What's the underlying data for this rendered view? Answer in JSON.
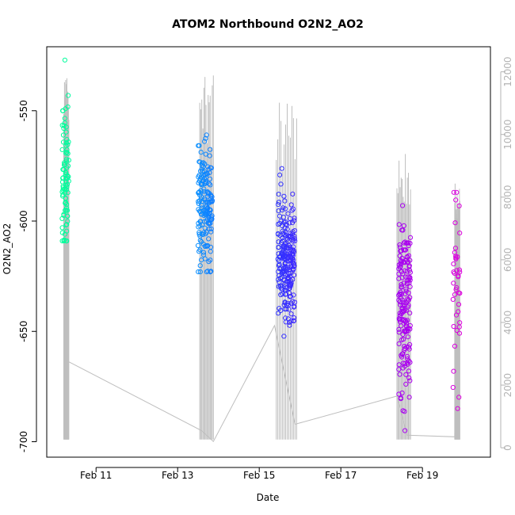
{
  "chart_data": {
    "type": "scatter",
    "title": "ATOM2 Northbound O2N2_AO2",
    "xlabel": "Date",
    "ylabel": "O2N2_AO2",
    "xlim": [
      "2013-02-09 19:00",
      "2013-02-20 16:00"
    ],
    "ylim": [
      -707,
      -521
    ],
    "x_ticks": [
      {
        "date": "2013-02-11",
        "label": "Feb 11"
      },
      {
        "date": "2013-02-13",
        "label": "Feb 13"
      },
      {
        "date": "2013-02-15",
        "label": "Feb 15"
      },
      {
        "date": "2013-02-17",
        "label": "Feb 17"
      },
      {
        "date": "2013-02-19",
        "label": "Feb 19"
      }
    ],
    "y_ticks": [
      -700,
      -650,
      -600,
      -550
    ],
    "y_ticks_labels": [
      "-700",
      "-650",
      "-600",
      "-550"
    ],
    "y2_lim": [
      -300,
      12800
    ],
    "y2_ticks": [
      0,
      2000,
      4000,
      6000,
      8000,
      10000,
      12000
    ],
    "y2_ticks_labels": [
      "0",
      "2000",
      "4000",
      "6000",
      "8000",
      "10000",
      "12000"
    ],
    "grid": false,
    "legend": "none",
    "point_color_gradient": [
      "#00FF99",
      "#00BFFF",
      "#1F3FFF",
      "#7F00FF",
      "#DD00DD"
    ],
    "line_color": "#bebebe",
    "clusters": [
      {
        "start": "2013-02-10 04:00",
        "end": "2013-02-10 08:00",
        "n": 90,
        "y_mean": -582,
        "y_spread": 22,
        "y_min": -609,
        "y_max": -523
      },
      {
        "start": "2013-02-13 12:00",
        "end": "2013-02-13 20:30",
        "n": 170,
        "y_mean": -594,
        "y_spread": 14,
        "y_min": -623,
        "y_max": -553
      },
      {
        "start": "2013-02-15 11:00",
        "end": "2013-02-15 21:00",
        "n": 230,
        "y_mean": -618,
        "y_spread": 13,
        "y_min": -662,
        "y_max": -575
      },
      {
        "start": "2013-02-18 10:00",
        "end": "2013-02-18 17:00",
        "n": 170,
        "y_mean": -638,
        "y_spread": 19,
        "y_min": -701,
        "y_max": -593
      },
      {
        "start": "2013-02-19 18:00",
        "end": "2013-02-19 22:00",
        "n": 40,
        "y_mean": -625,
        "y_spread": 30,
        "y_min": -685,
        "y_max": -587
      }
    ],
    "altitude_line": [
      {
        "date": "2013-02-10 06:00",
        "value": 2800
      },
      {
        "date": "2013-02-13 14:00",
        "value": 550
      },
      {
        "date": "2013-02-13 21:00",
        "value": 200
      },
      {
        "date": "2013-02-15 09:00",
        "value": 3900
      },
      {
        "date": "2013-02-15 21:00",
        "value": 750
      },
      {
        "date": "2013-02-18 09:00",
        "value": 1650
      },
      {
        "date": "2013-02-18 15:00",
        "value": 400
      },
      {
        "date": "2013-02-19 19:00",
        "value": 350
      },
      {
        "date": "2013-02-19 21:00",
        "value": 6800
      }
    ],
    "altitude_spikes": [
      {
        "start": "2013-02-10 05:00",
        "end": "2013-02-10 08:00",
        "peaks": [
          11200,
          11800,
          12300
        ]
      },
      {
        "start": "2013-02-13 13:00",
        "end": "2013-02-13 21:00",
        "peaks": [
          11700,
          12100,
          12500,
          10500
        ]
      },
      {
        "start": "2013-02-15 10:00",
        "end": "2013-02-15 22:00",
        "peaks": [
          10000,
          10700,
          11300,
          11800
        ]
      },
      {
        "start": "2013-02-18 09:00",
        "end": "2013-02-18 17:00",
        "peaks": [
          8500,
          9000,
          9800
        ]
      },
      {
        "start": "2013-02-19 19:00",
        "end": "2013-02-19 22:00",
        "peaks": [
          8500
        ]
      }
    ]
  }
}
